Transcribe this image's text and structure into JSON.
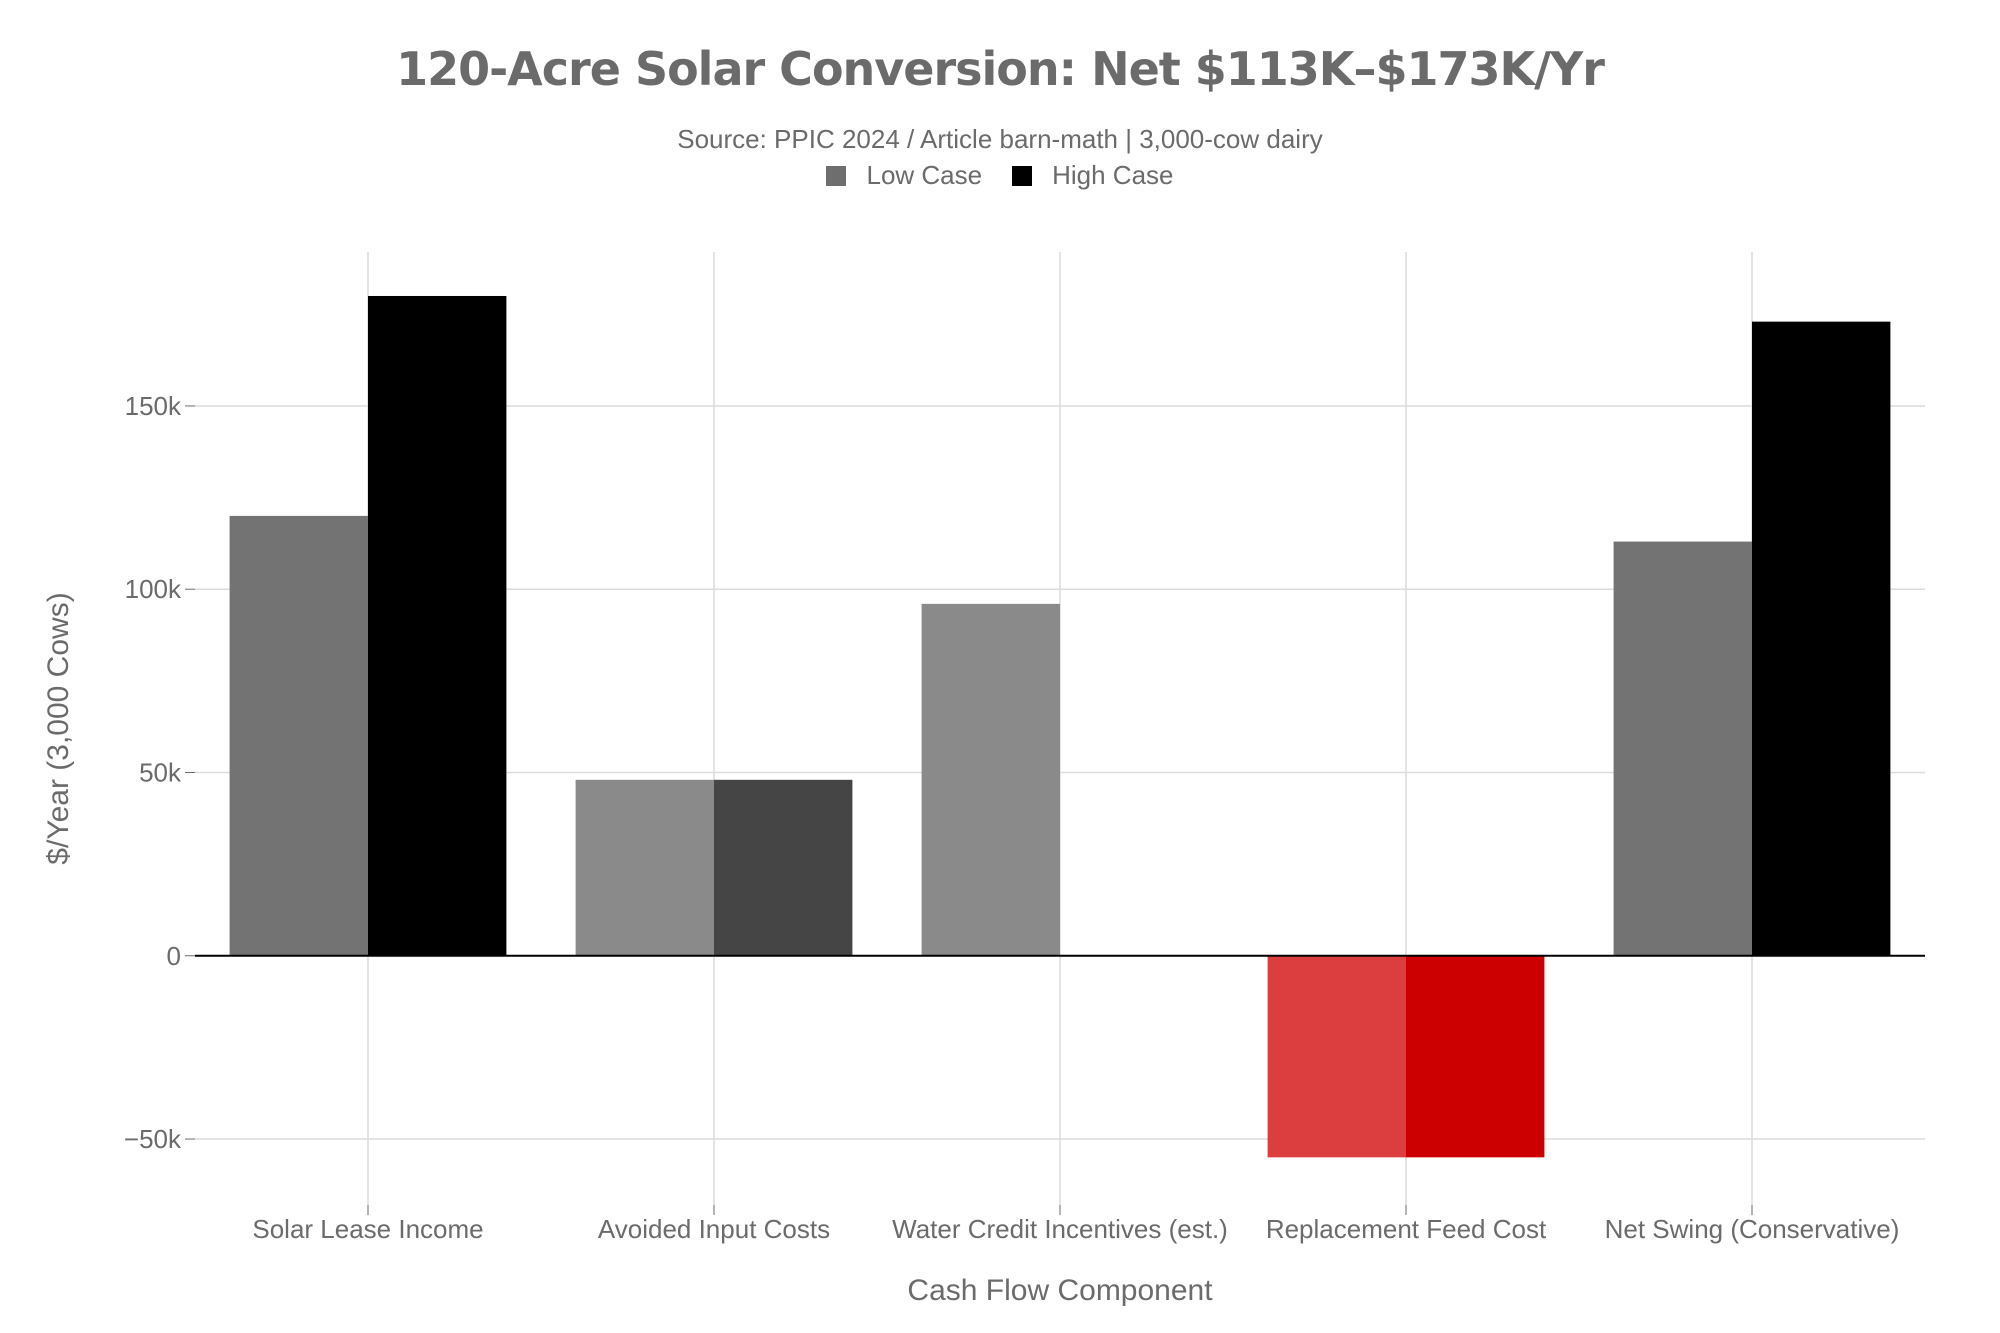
{
  "chart_data": {
    "type": "bar",
    "title": "120-Acre Solar Conversion: Net $113K–$173K/Yr",
    "subtitle": "Source: PPIC 2024 / Article barn-math | 3,000-cow dairy",
    "xlabel": "Cash Flow Component",
    "ylabel": "$/Year (3,000 Cows)",
    "categories": [
      "Solar Lease Income",
      "Avoided Input Costs",
      "Water Credit Incentives (est.)",
      "Replacement Feed Cost",
      "Net Swing (Conservative)"
    ],
    "series": [
      {
        "name": "Low Case",
        "values": [
          120000,
          48000,
          96000,
          -55000,
          113000
        ],
        "colors": [
          "#737373",
          "#8a8a8a",
          "#8a8a8a",
          "#dc3e40",
          "#737373"
        ]
      },
      {
        "name": "High Case",
        "values": [
          180000,
          48000,
          0,
          -55000,
          173000
        ],
        "colors": [
          "#000000",
          "#454545",
          "#000000",
          "#cc0000",
          "#000000"
        ]
      }
    ],
    "legend_colors": [
      "#6e6e6e",
      "#000000"
    ],
    "ylim": [
      -68000,
      192000
    ],
    "yticks": [
      -50000,
      0,
      50000,
      100000,
      150000
    ],
    "ytick_labels": [
      "−50k",
      "0",
      "50k",
      "100k",
      "150k"
    ],
    "grid": true,
    "legend_position": "top-center"
  }
}
